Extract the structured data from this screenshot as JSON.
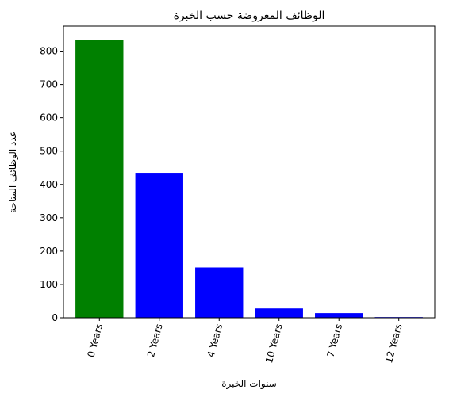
{
  "chart_data": {
    "type": "bar",
    "title": "الوظائف المعروضة حسب الخبرة",
    "xlabel": "سنوات الخبرة",
    "ylabel": "عدد الوظائف المتاحة",
    "categories": [
      "0 Years",
      "2 Years",
      "4 Years",
      "10 Years",
      "7 Years",
      "12 Years"
    ],
    "values": [
      833,
      435,
      151,
      28,
      14,
      2
    ],
    "colors": [
      "#008000",
      "#0000ff",
      "#0000ff",
      "#0000ff",
      "#0000ff",
      "#0000ff"
    ],
    "ylim": [
      0,
      875
    ],
    "yticks": [
      0,
      100,
      200,
      300,
      400,
      500,
      600,
      700,
      800
    ],
    "grid": false,
    "legend": "none"
  }
}
